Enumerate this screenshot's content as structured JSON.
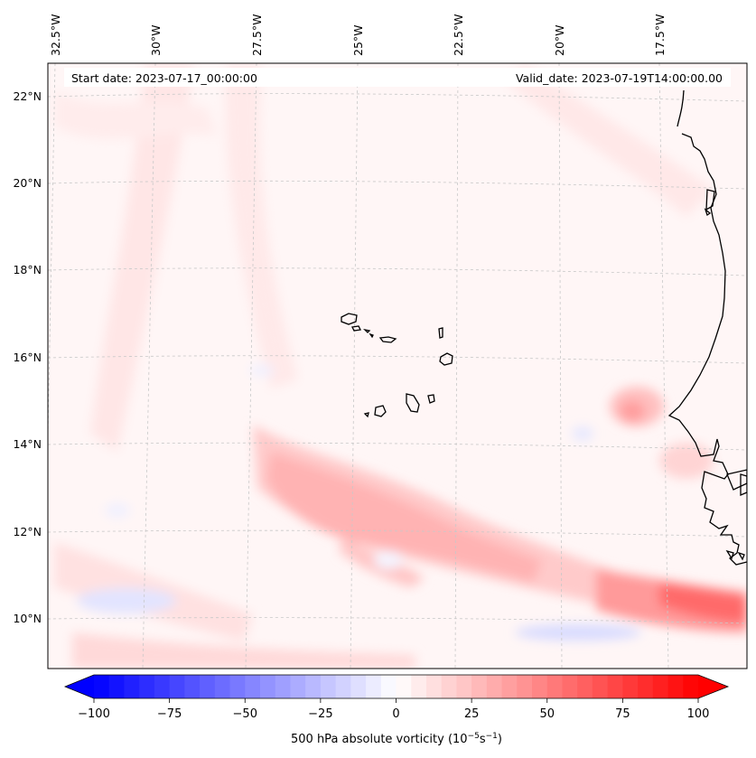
{
  "header": {
    "start_date": "Start date: 2023-07-17_00:00:00",
    "valid_date": "Valid_date: 2023-07-19T14:00:00.00"
  },
  "map": {
    "lon_labels": [
      "32.5°W",
      "30°W",
      "27.5°W",
      "25°W",
      "22.5°W",
      "20°W",
      "17.5°W"
    ],
    "lat_labels": [
      "22°N",
      "20°N",
      "18°N",
      "16°N",
      "14°N",
      "12°N",
      "10°N"
    ],
    "coastline_color": "#000000",
    "gridline_color": "#c8c8c8"
  },
  "colorbar": {
    "ticks": [
      "−100",
      "−75",
      "−50",
      "−25",
      "0",
      "25",
      "50",
      "75",
      "100"
    ],
    "label_prefix": "500 hPa absolute vorticity (10",
    "label_exp1": "−5",
    "label_mid": "s",
    "label_exp2": "−1",
    "label_suffix": ")",
    "min_color": "#0000ff",
    "mid_color": "#ffffff",
    "max_color": "#ff0000"
  }
}
